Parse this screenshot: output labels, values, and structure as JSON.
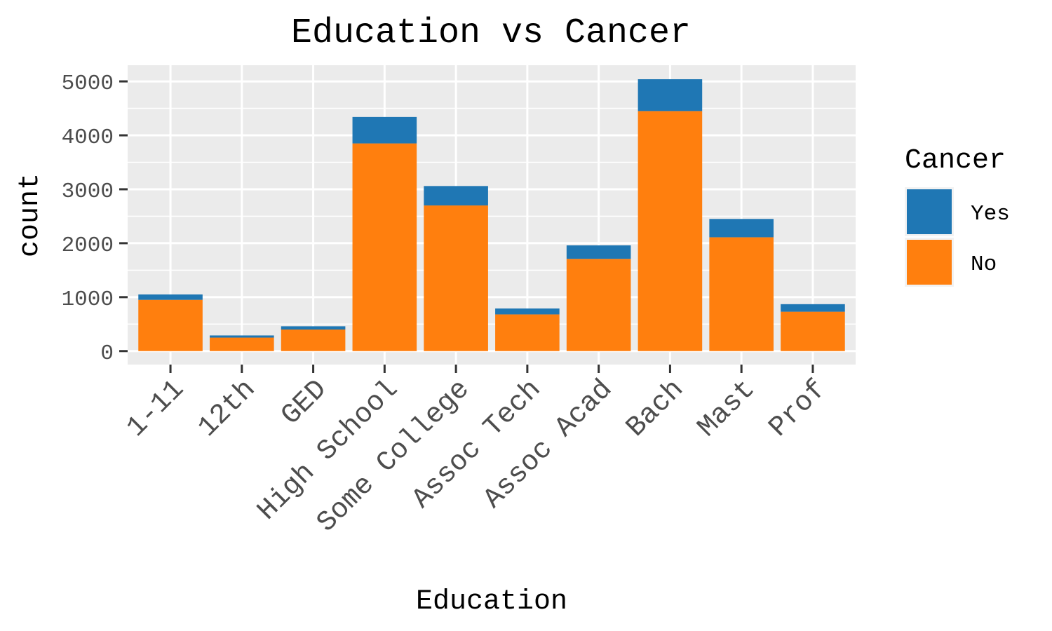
{
  "chart_data": {
    "type": "bar",
    "stacked": true,
    "title": "Education vs Cancer",
    "xlabel": "Education",
    "ylabel": "count",
    "categories": [
      "1-11",
      "12th",
      "GED",
      "High School",
      "Some College",
      "Assoc Tech",
      "Assoc Acad",
      "Bach",
      "Mast",
      "Prof"
    ],
    "series": [
      {
        "name": "No",
        "color": "#ff7f0e",
        "values": [
          950,
          250,
          400,
          3850,
          2700,
          680,
          1710,
          4450,
          2110,
          730
        ]
      },
      {
        "name": "Yes",
        "color": "#1f77b4",
        "values": [
          100,
          40,
          60,
          490,
          360,
          110,
          250,
          590,
          340,
          140
        ]
      }
    ],
    "ylim": [
      -250,
      5300
    ],
    "yticks": [
      0,
      1000,
      2000,
      3000,
      4000,
      5000
    ],
    "grid": true,
    "legend": {
      "title": "Cancer",
      "placement": "right",
      "order": [
        "Yes",
        "No"
      ]
    },
    "panel_background": "#ebebeb",
    "grid_color": "#ffffff"
  }
}
